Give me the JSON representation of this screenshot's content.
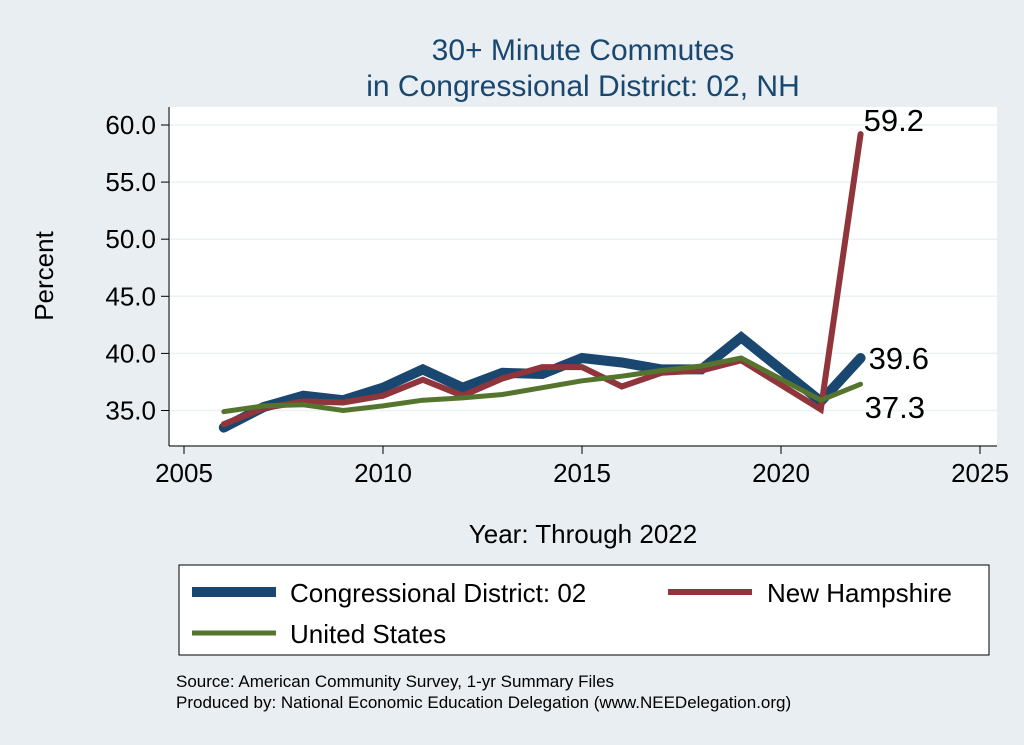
{
  "chart_data": {
    "type": "line",
    "title": [
      "30+ Minute Commutes",
      "in Congressional District:  02, NH"
    ],
    "xlabel": "Year: Through 2022",
    "ylabel": "Percent",
    "xlim": [
      2005,
      2025
    ],
    "ylim": [
      33,
      62
    ],
    "xticks": [
      2005,
      2010,
      2015,
      2020,
      2025
    ],
    "yticks": [
      35.0,
      40.0,
      45.0,
      50.0,
      55.0,
      60.0
    ],
    "ytick_labels": [
      "35.0",
      "40.0",
      "45.0",
      "50.0",
      "55.0",
      "60.0"
    ],
    "grid": "horizontal",
    "series": [
      {
        "name": "Congressional District:  02",
        "color": "#1a476f",
        "x": [
          2006,
          2007,
          2008,
          2009,
          2010,
          2011,
          2012,
          2013,
          2014,
          2015,
          2016,
          2017,
          2018,
          2019,
          2021,
          2022
        ],
        "y": [
          33.5,
          35.3,
          36.3,
          35.9,
          37.0,
          38.6,
          37.0,
          38.3,
          38.2,
          39.6,
          39.2,
          38.6,
          38.6,
          41.4,
          35.8,
          39.6
        ],
        "end_label": "39.6"
      },
      {
        "name": "New Hampshire",
        "color": "#90353b",
        "x": [
          2006,
          2007,
          2008,
          2009,
          2010,
          2011,
          2012,
          2013,
          2014,
          2015,
          2016,
          2017,
          2018,
          2019,
          2021,
          2022
        ],
        "y": [
          33.8,
          35.2,
          35.8,
          35.7,
          36.3,
          37.7,
          36.3,
          37.8,
          38.8,
          38.8,
          37.1,
          38.3,
          38.5,
          39.4,
          35.1,
          59.2
        ],
        "end_label": "59.2"
      },
      {
        "name": "United States",
        "color": "#55752f",
        "x": [
          2006,
          2007,
          2008,
          2009,
          2010,
          2011,
          2012,
          2013,
          2014,
          2015,
          2016,
          2017,
          2018,
          2019,
          2021,
          2022
        ],
        "y": [
          34.9,
          35.4,
          35.5,
          35.0,
          35.4,
          35.9,
          36.1,
          36.4,
          37.0,
          37.6,
          38.0,
          38.5,
          38.9,
          39.6,
          35.9,
          37.3
        ],
        "end_label": "37.3"
      }
    ],
    "legend": {
      "position": "bottom",
      "entries": [
        "Congressional District:  02",
        "New Hampshire",
        "United States"
      ]
    }
  },
  "footer": {
    "source": "Source: American Community Survey, 1-yr Summary Files",
    "produced": "Produced by: National Economic Education Delegation (www.NEEDelegation.org)"
  }
}
